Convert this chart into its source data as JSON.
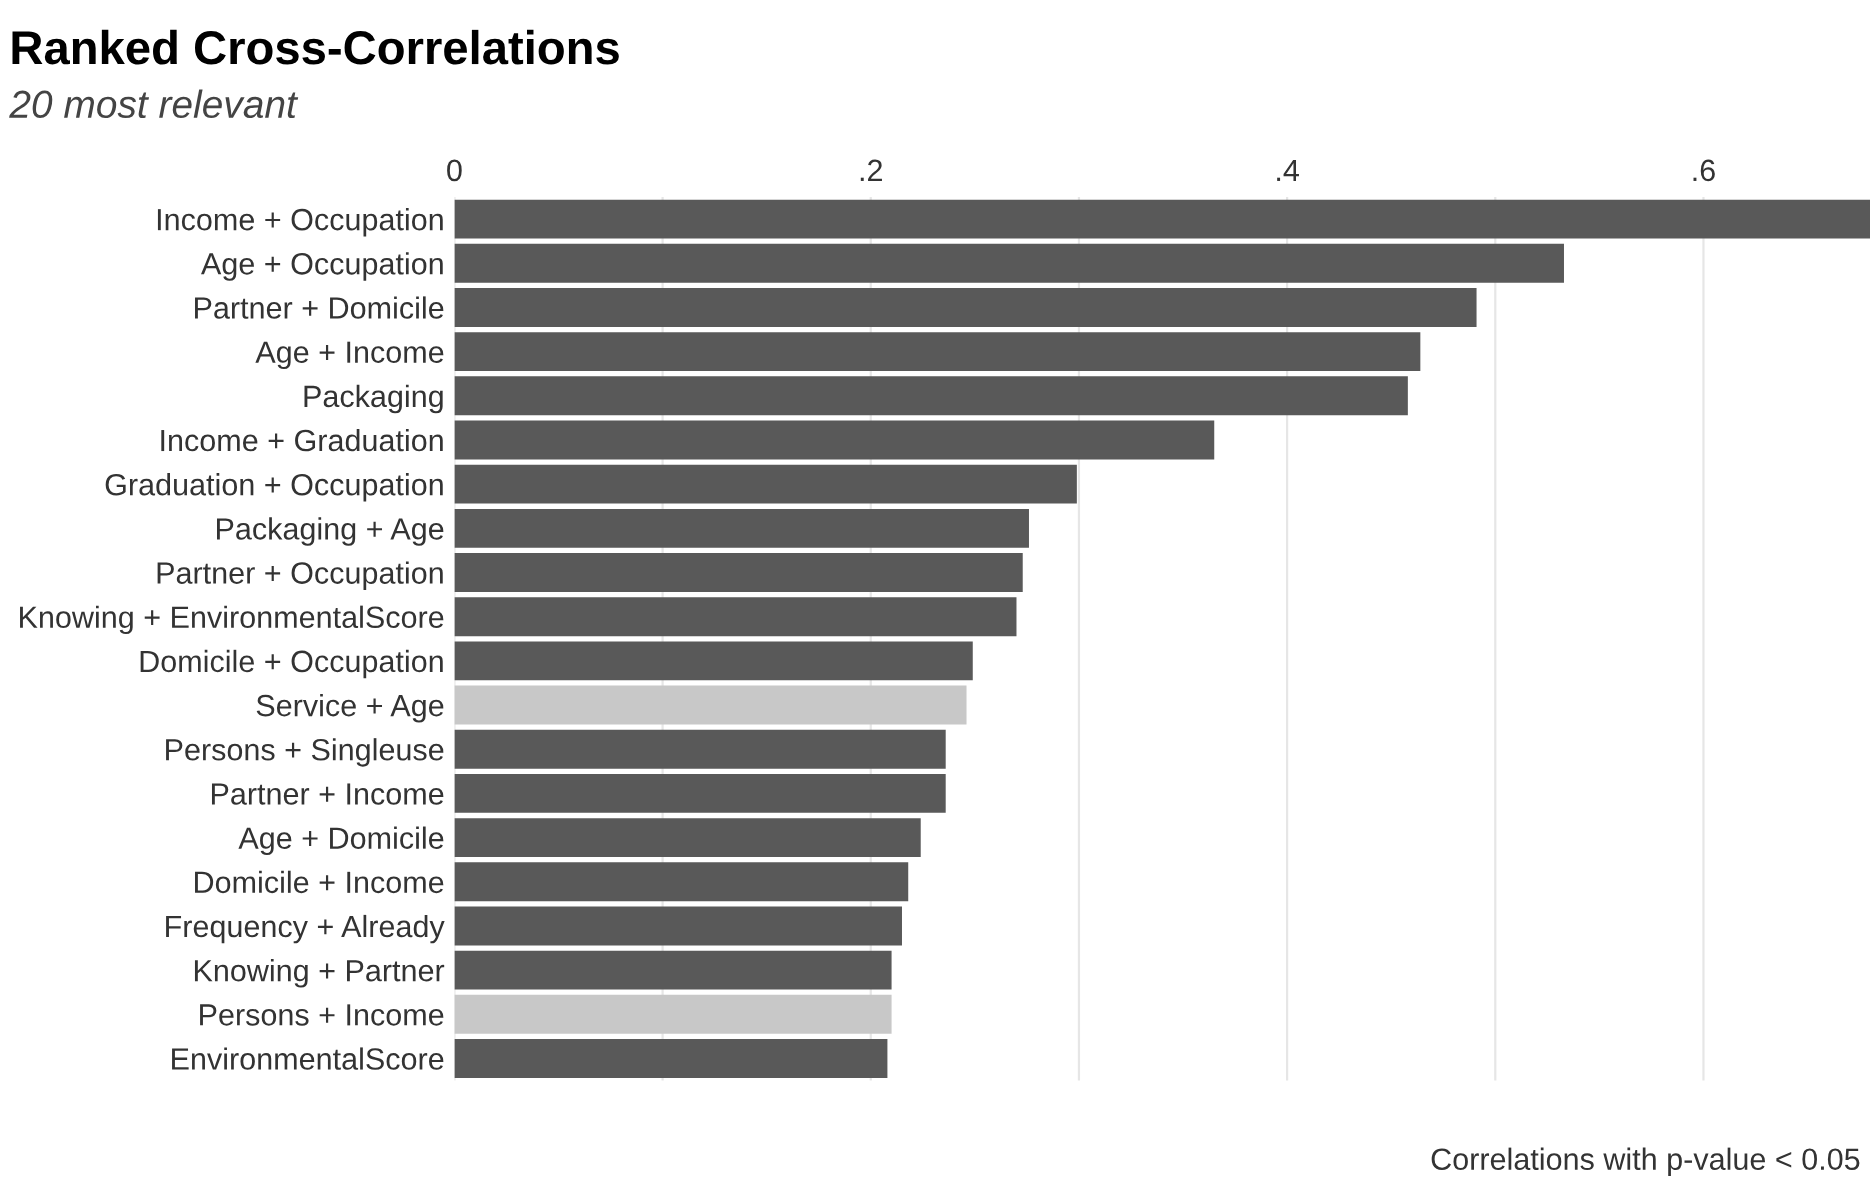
{
  "chart_data": {
    "type": "bar",
    "orientation": "horizontal",
    "title": "Ranked Cross-Correlations",
    "subtitle": "20 most relevant",
    "categories": [
      "Income + Occupation",
      "Age + Occupation",
      "Partner + Domicile",
      "Age + Income",
      "Packaging",
      "Income + Graduation",
      "Graduation + Occupation",
      "Packaging + Age",
      "Partner + Occupation",
      "Knowing + EnvironmentalScore",
      "Domicile + Occupation",
      "Service + Age",
      "Persons + Singleuse",
      "Partner + Income",
      "Age + Domicile",
      "Domicile + Income",
      "Frequency + Already",
      "Knowing + Partner",
      "Persons + Income",
      "EnvironmentalScore"
    ],
    "values": [
      0.68,
      0.533,
      0.491,
      0.464,
      0.458,
      0.365,
      0.299,
      0.276,
      0.273,
      0.27,
      0.249,
      0.246,
      0.236,
      0.236,
      0.224,
      0.218,
      0.215,
      0.21,
      0.21,
      0.208
    ],
    "colors": [
      "#595959",
      "#595959",
      "#595959",
      "#595959",
      "#595959",
      "#595959",
      "#595959",
      "#595959",
      "#595959",
      "#595959",
      "#595959",
      "#c8c8c8",
      "#595959",
      "#595959",
      "#595959",
      "#595959",
      "#595959",
      "#595959",
      "#c8c8c8",
      "#595959"
    ],
    "xlim": [
      0,
      0.68
    ],
    "xticks": [
      {
        "value": 0,
        "label": "0"
      },
      {
        "value": 0.1,
        "label": null
      },
      {
        "value": 0.2,
        "label": ".2"
      },
      {
        "value": 0.3,
        "label": null
      },
      {
        "value": 0.4,
        "label": ".4"
      },
      {
        "value": 0.5,
        "label": null
      },
      {
        "value": 0.6,
        "label": ".6"
      }
    ],
    "grid": "x",
    "annotations": [
      "Correlations with p-value < 0.05"
    ]
  }
}
